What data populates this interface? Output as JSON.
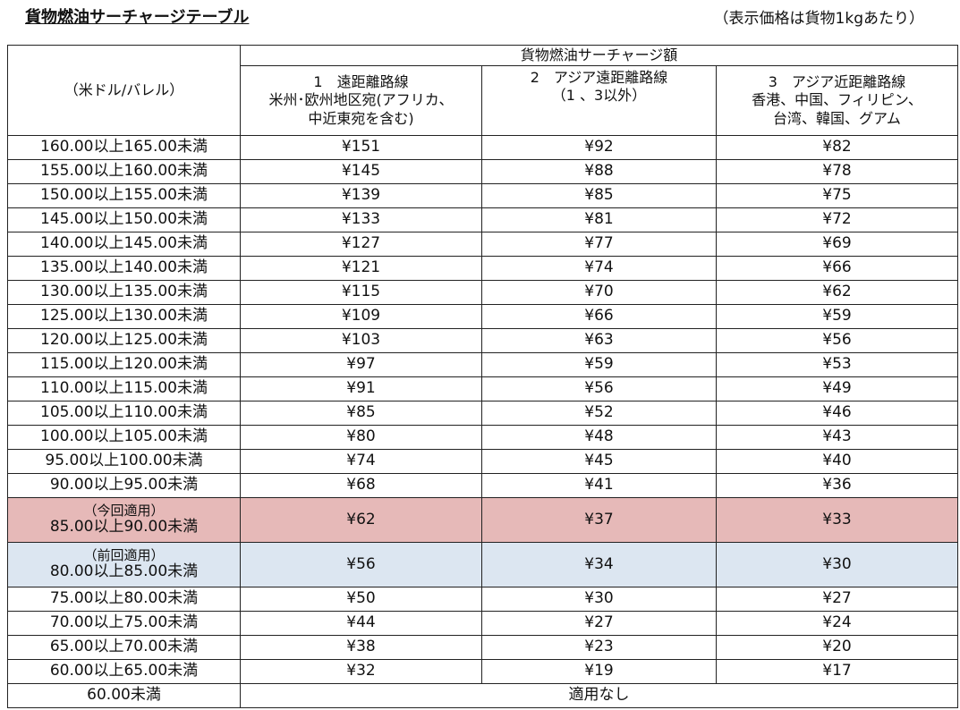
{
  "title": "貨物燃油サーチャージテーブル",
  "unit_note": "（表示価格は貨物1kgあたり）",
  "table": {
    "group_header": "貨物燃油サーチャージ額",
    "range_header": "（米ドル/バレル）",
    "columns": [
      {
        "line1": "1　遠距離路線",
        "line2": "米州･欧州地区宛(アフリカ、",
        "line3": "中近東宛を含む)"
      },
      {
        "line1": "2　アジア遠距離路線",
        "line2": "（1 、3以外）",
        "line3": ""
      },
      {
        "line1": "3　アジア近距離路線",
        "line2": "香港、中国、フィリピン、",
        "line3": "台湾、韓国、グアム"
      }
    ],
    "rows": [
      {
        "range": "160.00以上165.00未満",
        "long": "¥151",
        "asia_long": "¥92",
        "asia_short": "¥82"
      },
      {
        "range": "155.00以上160.00未満",
        "long": "¥145",
        "asia_long": "¥88",
        "asia_short": "¥78"
      },
      {
        "range": "150.00以上155.00未満",
        "long": "¥139",
        "asia_long": "¥85",
        "asia_short": "¥75"
      },
      {
        "range": "145.00以上150.00未満",
        "long": "¥133",
        "asia_long": "¥81",
        "asia_short": "¥72"
      },
      {
        "range": "140.00以上145.00未満",
        "long": "¥127",
        "asia_long": "¥77",
        "asia_short": "¥69"
      },
      {
        "range": "135.00以上140.00未満",
        "long": "¥121",
        "asia_long": "¥74",
        "asia_short": "¥66"
      },
      {
        "range": "130.00以上135.00未満",
        "long": "¥115",
        "asia_long": "¥70",
        "asia_short": "¥62"
      },
      {
        "range": "125.00以上130.00未満",
        "long": "¥109",
        "asia_long": "¥66",
        "asia_short": "¥59"
      },
      {
        "range": "120.00以上125.00未満",
        "long": "¥103",
        "asia_long": "¥63",
        "asia_short": "¥56"
      },
      {
        "range": "115.00以上120.00未満",
        "long": "¥97",
        "asia_long": "¥59",
        "asia_short": "¥53"
      },
      {
        "range": "110.00以上115.00未満",
        "long": "¥91",
        "asia_long": "¥56",
        "asia_short": "¥49"
      },
      {
        "range": "105.00以上110.00未満",
        "long": "¥85",
        "asia_long": "¥52",
        "asia_short": "¥46"
      },
      {
        "range": "100.00以上105.00未満",
        "long": "¥80",
        "asia_long": "¥48",
        "asia_short": "¥43"
      },
      {
        "range": "95.00以上100.00未満",
        "long": "¥74",
        "asia_long": "¥45",
        "asia_short": "¥40"
      },
      {
        "range": "90.00以上95.00未満",
        "long": "¥68",
        "asia_long": "¥41",
        "asia_short": "¥36"
      }
    ],
    "current": {
      "note": "（今回適用）",
      "range": "85.00以上90.00未満",
      "long": "¥62",
      "asia_long": "¥37",
      "asia_short": "¥33",
      "color": "#e6b9b8"
    },
    "previous": {
      "note": "（前回適用）",
      "range": "80.00以上85.00未満",
      "long": "¥56",
      "asia_long": "¥34",
      "asia_short": "¥30",
      "color": "#dce6f1"
    },
    "rows_lower": [
      {
        "range": "75.00以上80.00未満",
        "long": "¥50",
        "asia_long": "¥30",
        "asia_short": "¥27"
      },
      {
        "range": "70.00以上75.00未満",
        "long": "¥44",
        "asia_long": "¥27",
        "asia_short": "¥24"
      },
      {
        "range": "65.00以上70.00未満",
        "long": "¥38",
        "asia_long": "¥23",
        "asia_short": "¥20"
      },
      {
        "range": "60.00以上65.00未満",
        "long": "¥32",
        "asia_long": "¥19",
        "asia_short": "¥17"
      }
    ],
    "footer": {
      "range": "60.00未満",
      "value": "適用なし"
    }
  }
}
